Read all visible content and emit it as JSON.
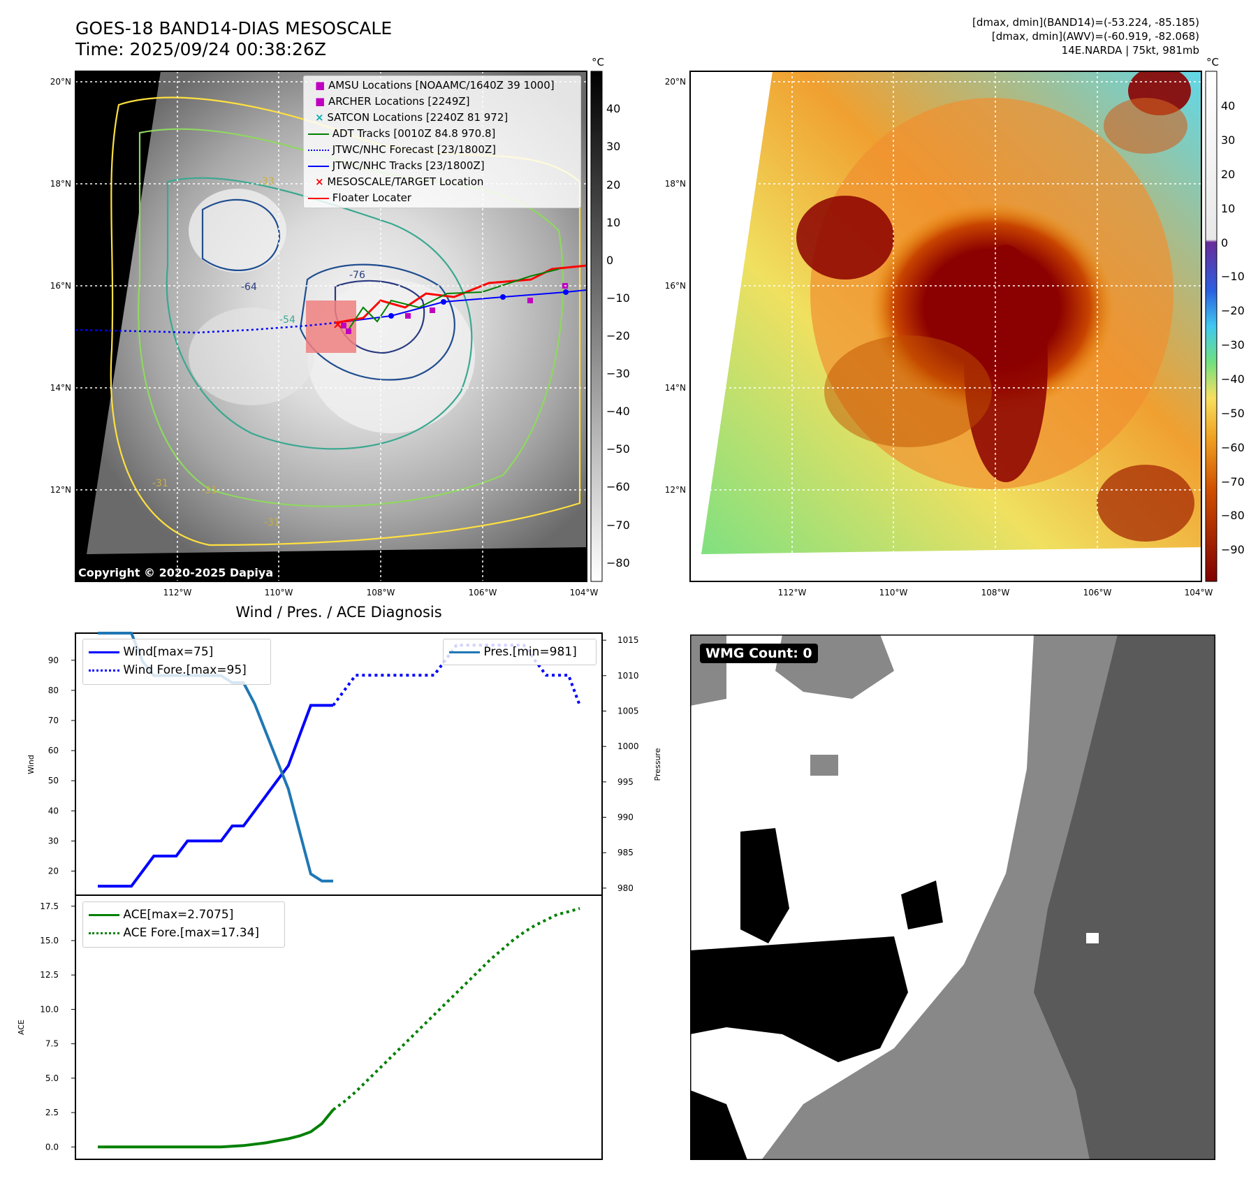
{
  "header": {
    "title_line1": "GOES-18 BAND14-DIAS MESOSCALE",
    "title_line2": "Time: 2025/09/24 00:38:26Z",
    "stats_line1": "[dmax, dmin](BAND14)=(-53.224, -85.185)",
    "stats_line2": "[dmax, dmin](AWV)=(-60.919, -82.068)",
    "stats_line3": "14E.NARDA | 75kt, 981mb"
  },
  "map": {
    "lat_labels": [
      "20°N",
      "18°N",
      "16°N",
      "14°N",
      "12°N"
    ],
    "lon_labels": [
      "112°W",
      "110°W",
      "108°W",
      "106°W",
      "104°W"
    ],
    "contour_labels": [
      "-76",
      "-64",
      "-54",
      "-33",
      "-31",
      "-31",
      "-31"
    ],
    "copyright": "Copyright © 2020-2025 Dapiya",
    "legend": [
      {
        "label": "AMSU Locations [NOAAMC/1640Z 39 1000]",
        "color": "#c000c0",
        "marker": "square"
      },
      {
        "label": "ARCHER Locations [2249Z]",
        "color": "#c000c0",
        "marker": "square"
      },
      {
        "label": "SATCON Locations [2240Z 81 972]",
        "color": "#00b0b0",
        "marker": "x"
      },
      {
        "label": "ADT Tracks [0010Z 84.8 970.8]",
        "color": "#008000",
        "marker": "line"
      },
      {
        "label": "JTWC/NHC Forecast [23/1800Z]",
        "color": "#0000ff",
        "marker": "dotted"
      },
      {
        "label": "JTWC/NHC Tracks [23/1800Z]",
        "color": "#0000ff",
        "marker": "dotline"
      },
      {
        "label": "MESOSCALE/TARGET Location",
        "color": "#ff0000",
        "marker": "x"
      },
      {
        "label": "Floater Locater",
        "color": "#ff0000",
        "marker": "line"
      }
    ],
    "colorbar_gray": {
      "unit": "°C",
      "ticks": [
        "40",
        "30",
        "20",
        "10",
        "0",
        "−10",
        "−20",
        "−30",
        "−40",
        "−50",
        "−60",
        "−70",
        "−80"
      ]
    },
    "colorbar_color": {
      "unit": "°C",
      "ticks": [
        "40",
        "30",
        "20",
        "10",
        "0",
        "−10",
        "−20",
        "−30",
        "−40",
        "−50",
        "−60",
        "−70",
        "−80",
        "−90"
      ]
    }
  },
  "diagnosis": {
    "title": "Wind / Pres. / ACE Diagnosis",
    "wind_ylabel": "Wind",
    "pres_ylabel": "Pressure",
    "ace_ylabel": "ACE",
    "wmg_label": "WMG Count: 0"
  },
  "chart_data": [
    {
      "type": "line",
      "title": "Wind / Pres. / ACE Diagnosis",
      "ylabel": "Wind",
      "y2label": "Pressure",
      "ylim": [
        12,
        99
      ],
      "y2lim": [
        979,
        1016
      ],
      "yticks": [
        20,
        30,
        40,
        50,
        60,
        70,
        80,
        90
      ],
      "y2ticks": [
        980,
        985,
        990,
        995,
        1000,
        1005,
        1010,
        1015
      ],
      "x": [
        0,
        1,
        2,
        3,
        4,
        5,
        6,
        7,
        8,
        9,
        10,
        11,
        12,
        13,
        14,
        15,
        16,
        17,
        18,
        19,
        20,
        21,
        22,
        23,
        24,
        25,
        26,
        27,
        28,
        29,
        30,
        31,
        32,
        33,
        34,
        35,
        36,
        37,
        38,
        39,
        40,
        41,
        42,
        43
      ],
      "series": [
        {
          "name": "Wind[max=75]",
          "axis": "left",
          "style": "solid",
          "color": "#0000ff",
          "x": [
            0,
            1,
            2,
            3,
            4,
            5,
            6,
            7,
            8,
            9,
            10,
            11,
            12,
            13,
            14,
            15,
            16,
            17,
            18,
            19,
            20,
            21
          ],
          "values": [
            15,
            15,
            15,
            15,
            20,
            25,
            25,
            25,
            30,
            30,
            30,
            30,
            35,
            35,
            40,
            45,
            50,
            55,
            65,
            75,
            75,
            75
          ]
        },
        {
          "name": "Wind Fore.[max=95]",
          "axis": "left",
          "style": "dotted",
          "color": "#0000ff",
          "x": [
            21,
            22,
            23,
            24,
            25,
            26,
            27,
            28,
            29,
            30,
            31,
            32,
            33,
            34,
            35,
            36,
            37,
            38,
            39,
            40,
            41,
            42,
            43
          ],
          "values": [
            75,
            80,
            85,
            85,
            85,
            85,
            85,
            85,
            85,
            85,
            90,
            95,
            95,
            95,
            95,
            95,
            95,
            95,
            90,
            85,
            85,
            85,
            75
          ]
        },
        {
          "name": "Pres.[min=981]",
          "axis": "right",
          "style": "solid",
          "color": "#1f77b4",
          "x": [
            0,
            1,
            2,
            3,
            4,
            5,
            6,
            7,
            8,
            9,
            10,
            11,
            12,
            13,
            14,
            15,
            16,
            17,
            18,
            19,
            20,
            21
          ],
          "values": [
            1016,
            1016,
            1016,
            1016,
            1012,
            1010,
            1010,
            1010,
            1010,
            1010,
            1010,
            1010,
            1009,
            1009,
            1006,
            1002,
            998,
            994,
            988,
            982,
            981,
            981
          ]
        }
      ]
    },
    {
      "type": "line",
      "ylabel": "ACE",
      "ylim": [
        -0.9,
        18.3
      ],
      "yticks": [
        0.0,
        2.5,
        5.0,
        7.5,
        10.0,
        12.5,
        15.0,
        17.5
      ],
      "series": [
        {
          "name": "ACE[max=2.7075]",
          "style": "solid",
          "color": "#008000",
          "x": [
            0,
            1,
            2,
            3,
            4,
            5,
            6,
            7,
            8,
            9,
            10,
            11,
            12,
            13,
            14,
            15,
            16,
            17,
            18,
            19,
            20,
            21
          ],
          "values": [
            0,
            0,
            0,
            0,
            0,
            0,
            0,
            0,
            0,
            0,
            0,
            0,
            0.05,
            0.1,
            0.2,
            0.3,
            0.45,
            0.6,
            0.8,
            1.1,
            1.7,
            2.7075
          ]
        },
        {
          "name": "ACE Fore.[max=17.34]",
          "style": "dotted",
          "color": "#008000",
          "x": [
            21,
            22,
            23,
            24,
            25,
            26,
            27,
            28,
            29,
            30,
            31,
            32,
            33,
            34,
            35,
            36,
            37,
            38,
            39,
            40,
            41,
            42,
            43
          ],
          "values": [
            2.7075,
            3.3,
            4.0,
            4.8,
            5.6,
            6.4,
            7.2,
            8.0,
            8.8,
            9.6,
            10.4,
            11.2,
            12.0,
            12.8,
            13.6,
            14.3,
            15.0,
            15.6,
            16.1,
            16.5,
            16.9,
            17.1,
            17.34
          ]
        }
      ]
    }
  ]
}
